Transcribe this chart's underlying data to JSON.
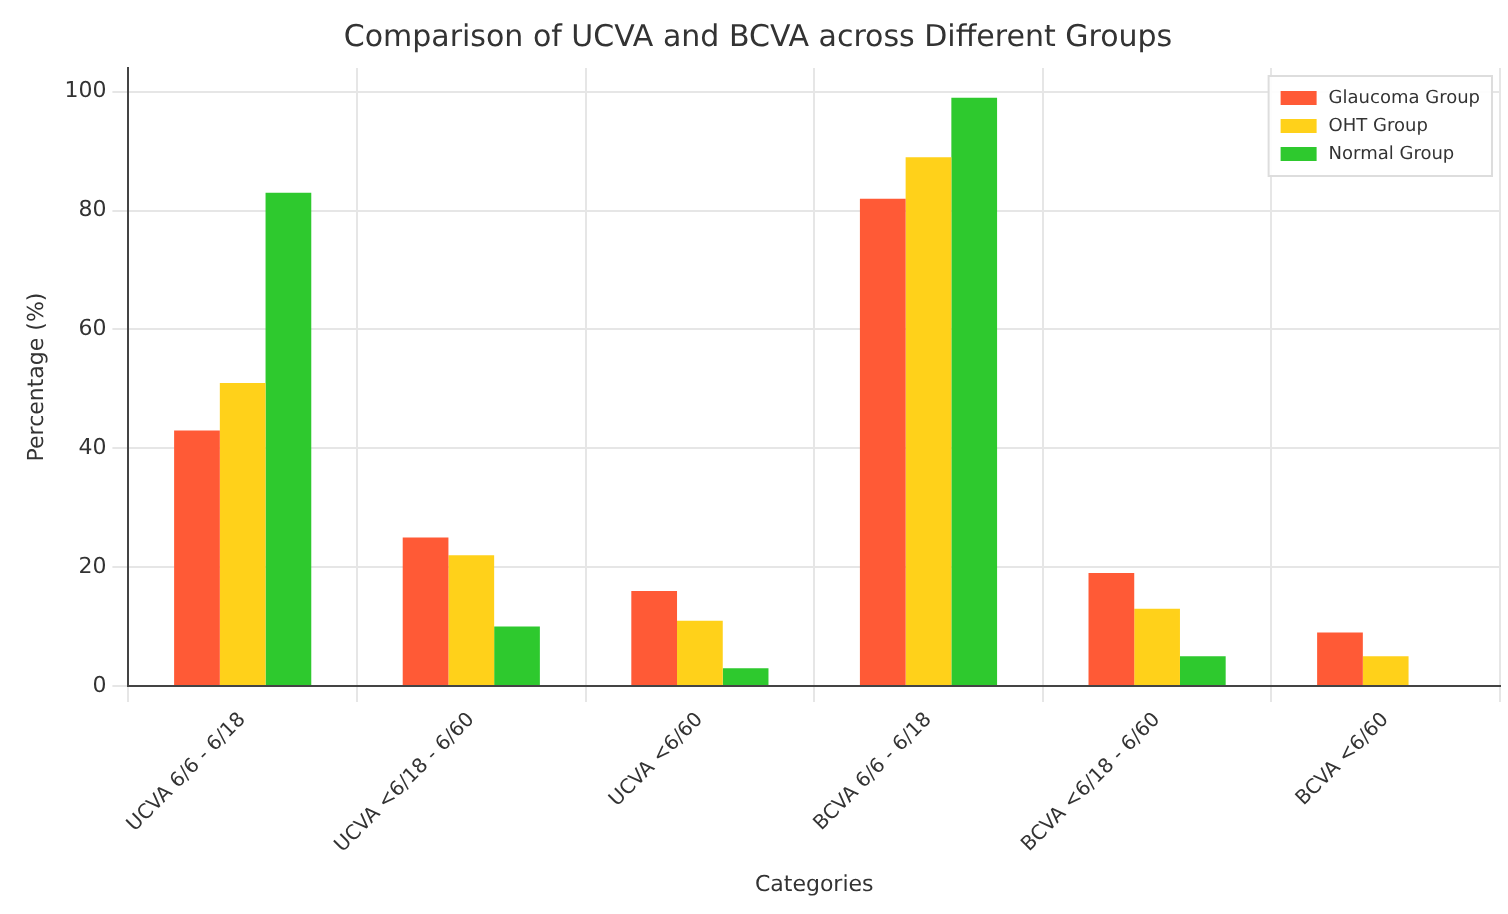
{
  "chart_data": {
    "type": "bar",
    "title": "Comparison of UCVA and BCVA across Different Groups",
    "xlabel": "Categories",
    "ylabel": "Percentage (%)",
    "categories": [
      "UCVA 6/6 - 6/18",
      "UCVA <6/18 - 6/60",
      "UCVA <6/60",
      "BCVA 6/6 - 6/18",
      "BCVA <6/18 - 6/60",
      "BCVA <6/60"
    ],
    "series": [
      {
        "name": "Glaucoma Group",
        "color": "#ff5a36",
        "values": [
          43,
          25,
          16,
          82,
          19,
          9
        ]
      },
      {
        "name": "OHT Group",
        "color": "#ffd11a",
        "values": [
          51,
          22,
          11,
          89,
          13,
          5
        ]
      },
      {
        "name": "Normal Group",
        "color": "#2ec92e",
        "values": [
          83,
          10,
          3,
          99,
          5,
          0
        ]
      }
    ],
    "ylim": [
      0,
      104
    ],
    "yticks": [
      0,
      20,
      40,
      60,
      80,
      100
    ],
    "grid": true,
    "legend": "top right"
  }
}
